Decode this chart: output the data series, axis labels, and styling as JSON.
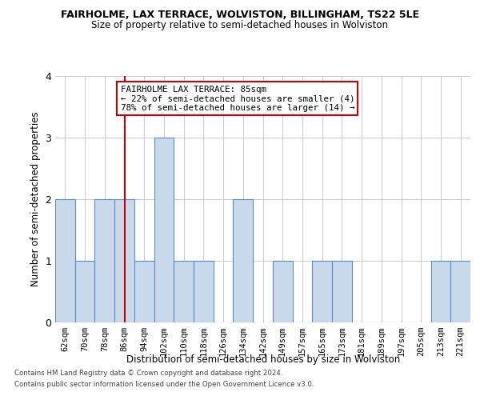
{
  "title1": "FAIRHOLME, LAX TERRACE, WOLVISTON, BILLINGHAM, TS22 5LE",
  "title2": "Size of property relative to semi-detached houses in Wolviston",
  "xlabel": "Distribution of semi-detached houses by size in Wolviston",
  "ylabel": "Number of semi-detached properties",
  "footer1": "Contains HM Land Registry data © Crown copyright and database right 2024.",
  "footer2": "Contains public sector information licensed under the Open Government Licence v3.0.",
  "categories": [
    "62sqm",
    "70sqm",
    "78sqm",
    "86sqm",
    "94sqm",
    "102sqm",
    "110sqm",
    "118sqm",
    "126sqm",
    "134sqm",
    "142sqm",
    "149sqm",
    "157sqm",
    "165sqm",
    "173sqm",
    "181sqm",
    "189sqm",
    "197sqm",
    "205sqm",
    "213sqm",
    "221sqm"
  ],
  "values": [
    2,
    1,
    2,
    2,
    1,
    3,
    1,
    1,
    0,
    2,
    0,
    1,
    0,
    1,
    1,
    0,
    0,
    0,
    0,
    1,
    1
  ],
  "bar_color": "#c9d9ec",
  "bar_edge_color": "#5b8dc8",
  "subject_index": 3,
  "subject_line_color": "#cc0000",
  "annotation_text": "FAIRHOLME LAX TERRACE: 85sqm\n← 22% of semi-detached houses are smaller (4)\n78% of semi-detached houses are larger (14) →",
  "annotation_box_color": "#ffffff",
  "annotation_box_edge": "#cc0000",
  "ylim": [
    0,
    4
  ],
  "yticks": [
    0,
    1,
    2,
    3,
    4
  ],
  "bg_color": "#ffffff",
  "grid_color": "#cccccc"
}
